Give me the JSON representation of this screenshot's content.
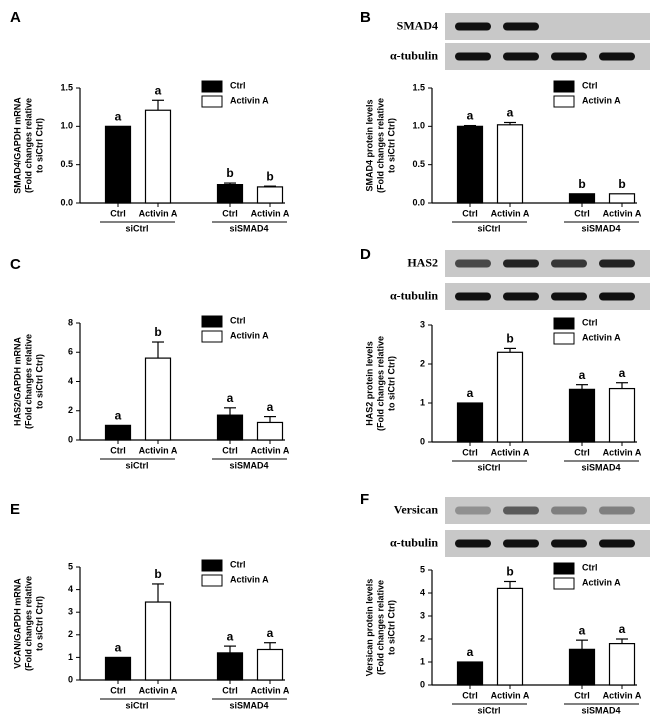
{
  "chart_data": [
    {
      "panel": "A",
      "type": "bar",
      "ylabel": [
        "SMAD4/GAPDH mRNA",
        "(Fold changes relative",
        "to siCtrl Ctrl)"
      ],
      "categories": [
        "siCtrl",
        "siSMAD4"
      ],
      "series": [
        {
          "name": "Ctrl",
          "color": "#000000",
          "values": [
            1.0,
            0.24
          ],
          "errors": [
            null,
            0.02
          ],
          "labels": [
            "a",
            "b"
          ]
        },
        {
          "name": "Activin A",
          "color": "#ffffff",
          "values": [
            1.21,
            0.21
          ],
          "errors": [
            0.13,
            0.01
          ],
          "labels": [
            "a",
            "b"
          ]
        }
      ],
      "ylim": [
        0,
        1.5
      ],
      "yticks": [
        {
          "value": 0,
          "label": "0.0"
        },
        {
          "value": 0.5,
          "label": "0.5"
        },
        {
          "value": 1,
          "label": "1.0"
        },
        {
          "value": 1.5,
          "label": "1.5"
        }
      ]
    },
    {
      "panel": "B",
      "type": "bar",
      "blot": [
        "SMAD4",
        "α-tubulin"
      ],
      "ylabel": [
        "SMAD4 protein levels",
        "(Fold changes relative",
        "to siCtrl Ctrl)"
      ],
      "categories": [
        "siCtrl",
        "siSMAD4"
      ],
      "series": [
        {
          "name": "Ctrl",
          "color": "#000000",
          "values": [
            1.0,
            0.12
          ],
          "errors": [
            0.01,
            null
          ],
          "labels": [
            "a",
            "b"
          ]
        },
        {
          "name": "Activin A",
          "color": "#ffffff",
          "values": [
            1.02,
            0.12
          ],
          "errors": [
            0.03,
            null
          ],
          "labels": [
            "a",
            "b"
          ]
        }
      ],
      "ylim": [
        0,
        1.5
      ],
      "yticks": [
        {
          "value": 0,
          "label": "0.0"
        },
        {
          "value": 0.5,
          "label": "0.5"
        },
        {
          "value": 1,
          "label": "1.0"
        },
        {
          "value": 1.5,
          "label": "1.5"
        }
      ]
    },
    {
      "panel": "C",
      "type": "bar",
      "ylabel": [
        "HAS2/GAPDH mRNA",
        "(Fold changes relative",
        "to siCtrl Ctrl)"
      ],
      "categories": [
        "siCtrl",
        "siSMAD4"
      ],
      "series": [
        {
          "name": "Ctrl",
          "color": "#000000",
          "values": [
            1.0,
            1.7
          ],
          "errors": [
            null,
            0.5
          ],
          "labels": [
            "a",
            "a"
          ]
        },
        {
          "name": "Activin A",
          "color": "#ffffff",
          "values": [
            5.6,
            1.2
          ],
          "errors": [
            1.1,
            0.4
          ],
          "labels": [
            "b",
            "a"
          ]
        }
      ],
      "ylim": [
        0,
        8
      ],
      "yticks": [
        0,
        2,
        4,
        6,
        8
      ]
    },
    {
      "panel": "D",
      "type": "bar",
      "blot": [
        "HAS2",
        "α-tubulin"
      ],
      "ylabel": [
        "HAS2 protein levels",
        "(Fold changes relative",
        "to siCtrl Ctrl)"
      ],
      "categories": [
        "siCtrl",
        "siSMAD4"
      ],
      "series": [
        {
          "name": "Ctrl",
          "color": "#000000",
          "values": [
            1.0,
            1.35
          ],
          "errors": [
            null,
            0.12
          ],
          "labels": [
            "a",
            "a"
          ]
        },
        {
          "name": "Activin A",
          "color": "#ffffff",
          "values": [
            2.3,
            1.37
          ],
          "errors": [
            0.1,
            0.15
          ],
          "labels": [
            "b",
            "a"
          ]
        }
      ],
      "ylim": [
        0,
        3
      ],
      "yticks": [
        0,
        1,
        2,
        3
      ]
    },
    {
      "panel": "E",
      "type": "bar",
      "ylabel": [
        "VCAN/GAPDH mRNA",
        "(Fold changes relative",
        "to siCtrl Ctrl)"
      ],
      "categories": [
        "siCtrl",
        "siSMAD4"
      ],
      "series": [
        {
          "name": "Ctrl",
          "color": "#000000",
          "values": [
            1.0,
            1.2
          ],
          "errors": [
            null,
            0.3
          ],
          "labels": [
            "a",
            "a"
          ]
        },
        {
          "name": "Activin A",
          "color": "#ffffff",
          "values": [
            3.45,
            1.35
          ],
          "errors": [
            0.8,
            0.3
          ],
          "labels": [
            "b",
            "a"
          ]
        }
      ],
      "ylim": [
        0,
        5
      ],
      "yticks": [
        0,
        1,
        2,
        3,
        4,
        5
      ]
    },
    {
      "panel": "F",
      "type": "bar",
      "blot": [
        "Versican",
        "α-tubulin"
      ],
      "ylabel": [
        "Versican protein levels",
        "(Fold changes relative",
        "to siCtrl Ctrl)"
      ],
      "categories": [
        "siCtrl",
        "siSMAD4"
      ],
      "series": [
        {
          "name": "Ctrl",
          "color": "#000000",
          "values": [
            1.0,
            1.55
          ],
          "errors": [
            null,
            0.4
          ],
          "labels": [
            "a",
            "a"
          ]
        },
        {
          "name": "Activin A",
          "color": "#ffffff",
          "values": [
            4.2,
            1.8
          ],
          "errors": [
            0.3,
            0.2
          ],
          "labels": [
            "b",
            "a"
          ]
        }
      ],
      "ylim": [
        0,
        5
      ],
      "yticks": [
        0,
        1,
        2,
        3,
        4,
        5
      ]
    }
  ]
}
